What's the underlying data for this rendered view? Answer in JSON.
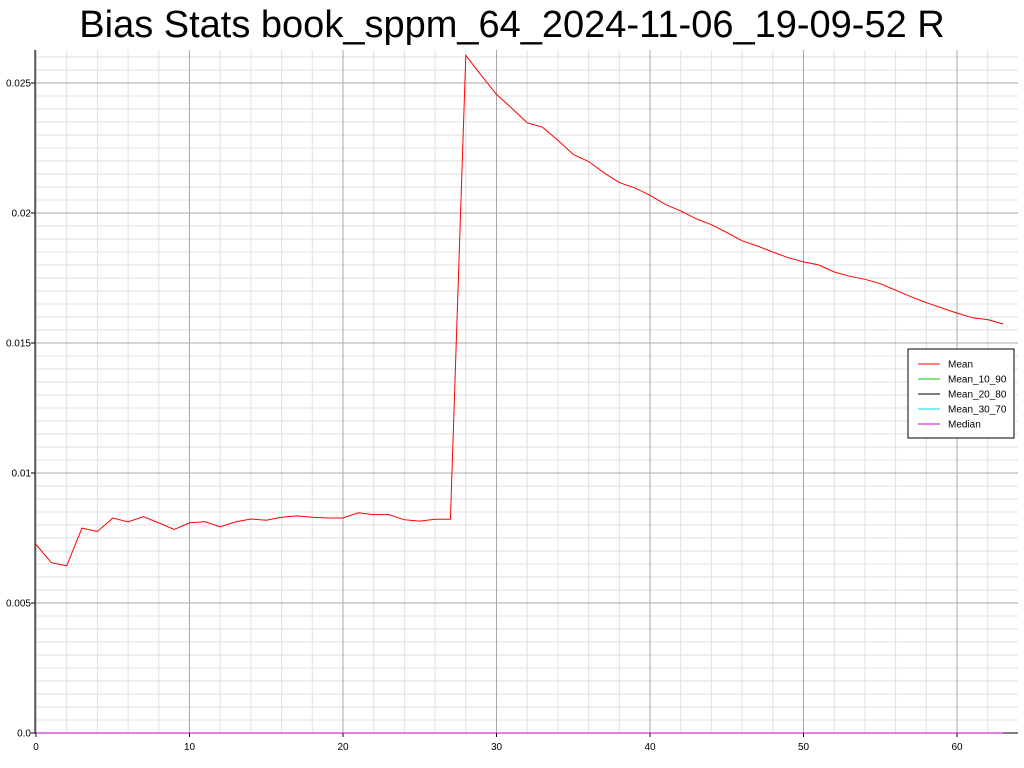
{
  "chart_data": {
    "type": "line",
    "title": "Bias Stats book_sppm_64_2024-11-06_19-09-52 R",
    "xlabel": "",
    "ylabel": "",
    "xlim": [
      0,
      64
    ],
    "ylim": [
      0,
      0.0262
    ],
    "x_ticks": [
      0,
      10,
      20,
      30,
      40,
      50,
      60
    ],
    "y_ticks": [
      0.0,
      0.005,
      0.01,
      0.015,
      0.02,
      0.025
    ],
    "y_tick_labels": [
      "0.0",
      "0.005",
      "0.01",
      "0.015",
      "0.02",
      "0.025"
    ],
    "grid": true,
    "legend_position": "right",
    "x": [
      0,
      1,
      2,
      3,
      4,
      5,
      6,
      7,
      8,
      9,
      10,
      11,
      12,
      13,
      14,
      15,
      16,
      17,
      18,
      19,
      20,
      21,
      22,
      23,
      24,
      25,
      26,
      27,
      28,
      29,
      30,
      31,
      32,
      33,
      34,
      35,
      36,
      37,
      38,
      39,
      40,
      41,
      42,
      43,
      44,
      45,
      46,
      47,
      48,
      49,
      50,
      51,
      52,
      53,
      54,
      55,
      56,
      57,
      58,
      59,
      60,
      61,
      62,
      63
    ],
    "series": [
      {
        "name": "Mean",
        "color": "#ff0000",
        "values": [
          0.00725,
          0.00655,
          0.00643,
          0.00788,
          0.00775,
          0.00827,
          0.00812,
          0.00832,
          0.00808,
          0.00783,
          0.00808,
          0.00813,
          0.00793,
          0.00812,
          0.00823,
          0.00818,
          0.0083,
          0.00835,
          0.0083,
          0.00827,
          0.00827,
          0.00847,
          0.0084,
          0.0084,
          0.0082,
          0.00815,
          0.00822,
          0.00822,
          0.02606,
          0.0253,
          0.02456,
          0.02403,
          0.02347,
          0.0233,
          0.0228,
          0.02225,
          0.02198,
          0.02155,
          0.02117,
          0.02097,
          0.02068,
          0.02033,
          0.02008,
          0.01978,
          0.01955,
          0.01925,
          0.01893,
          0.01873,
          0.0185,
          0.01828,
          0.01812,
          0.018,
          0.01773,
          0.01757,
          0.01745,
          0.01728,
          0.01703,
          0.01678,
          0.01655,
          0.01635,
          0.01615,
          0.01597,
          0.0159,
          0.01573
        ]
      },
      {
        "name": "Mean_10_90",
        "color": "#00cc00",
        "values": "zeros"
      },
      {
        "name": "Mean_20_80",
        "color": "#000000",
        "values": "zeros"
      },
      {
        "name": "Mean_30_70",
        "color": "#00dddd",
        "values": "zeros"
      },
      {
        "name": "Median",
        "color": "#cc00cc",
        "values": "zeros"
      }
    ]
  }
}
